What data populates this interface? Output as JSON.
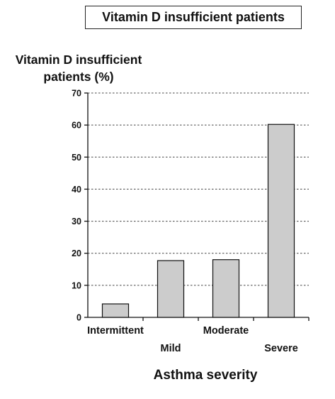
{
  "chart_data": {
    "type": "bar",
    "title": "Vitamin D insufficient patients",
    "ylabel_lines": [
      "Vitamin D insufficient",
      "patients (%)"
    ],
    "xlabel": "Asthma severity",
    "categories": [
      "Intermittent",
      "Mild",
      "Moderate",
      "Severe"
    ],
    "values": [
      4.2,
      17.7,
      18.0,
      60.2
    ],
    "ylim": [
      0,
      70
    ],
    "yticks": [
      0,
      10,
      20,
      30,
      40,
      50,
      60,
      70
    ],
    "grid": "horizontal dashed",
    "bar_color": "#cccccc",
    "bar_edge_color": "#111111"
  }
}
